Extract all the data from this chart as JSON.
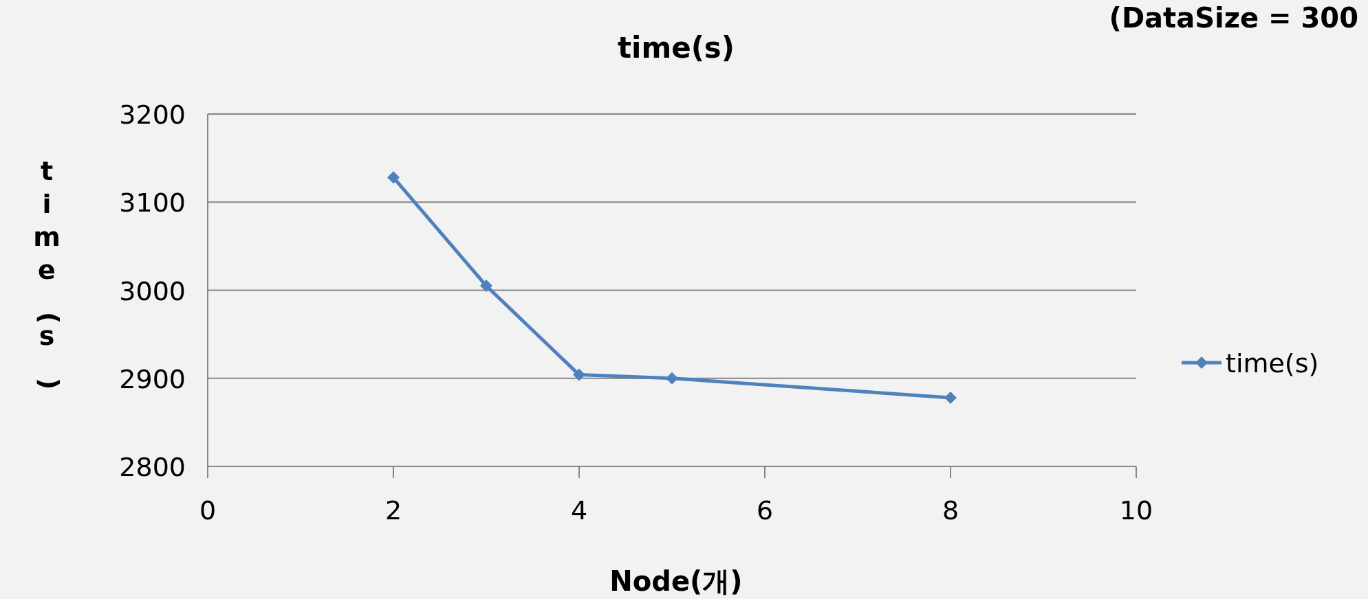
{
  "chart_data": {
    "type": "line",
    "title": "time(s)",
    "xlabel": "Node(개)",
    "ylabel": "time(s)",
    "annotations": [
      "(DataSize = 300"
    ],
    "x": [
      2,
      3,
      4,
      5,
      8
    ],
    "series": [
      {
        "name": "time(s)",
        "color": "#4f81bd",
        "values": [
          3128,
          3005,
          2904,
          2900,
          2878
        ]
      }
    ],
    "xlim": [
      0,
      10
    ],
    "xticks": [
      0,
      2,
      4,
      6,
      8,
      10
    ],
    "ylim": [
      2800,
      3200
    ],
    "yticks": [
      2800,
      2900,
      3000,
      3100,
      3200
    ],
    "grid": "y",
    "legend": "right",
    "marker": "diamond",
    "line_style": "solid"
  }
}
